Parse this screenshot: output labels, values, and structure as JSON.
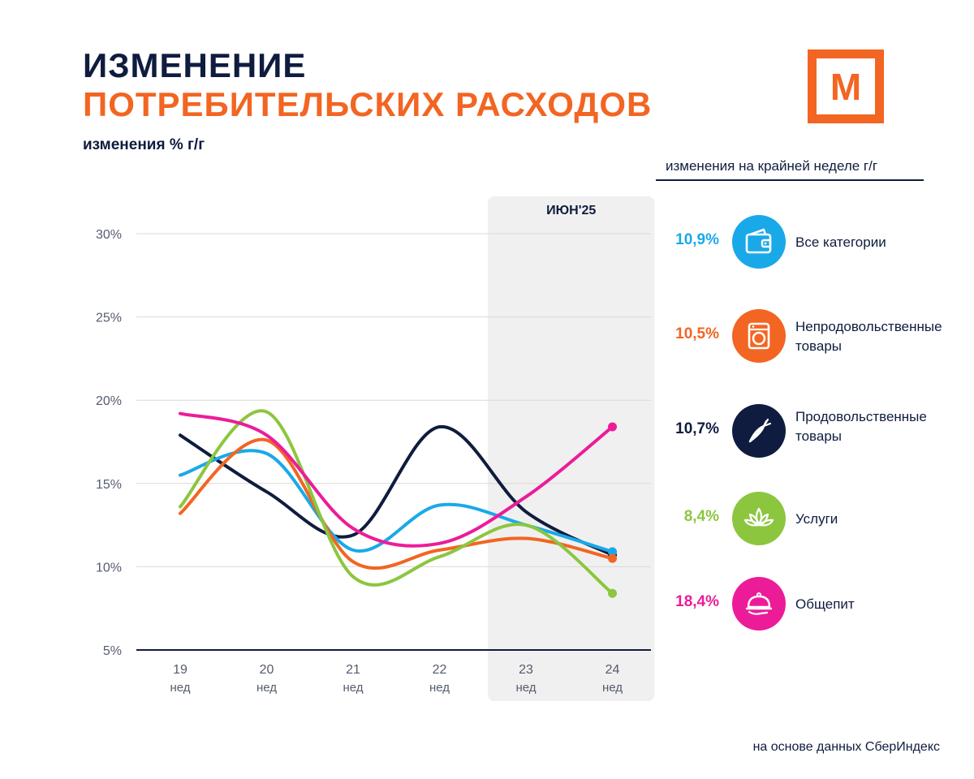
{
  "header": {
    "title_line1": "ИЗМЕНЕНИЕ",
    "title_line2": "ПОТРЕБИТЕЛЬСКИХ РАСХОДОВ",
    "subtitle": "изменения % г/г",
    "logo_letter": "М"
  },
  "legend": {
    "header": "изменения на крайней неделе г/г",
    "items": [
      {
        "value": "10,9%",
        "label_line1": "Все категории",
        "label_line2": "",
        "color": "#1aa9e8",
        "icon": "wallet-icon"
      },
      {
        "value": "10,5%",
        "label_line1": "Непродовольственные",
        "label_line2": "товары",
        "color": "#f26522",
        "icon": "washing-machine-icon"
      },
      {
        "value": "10,7%",
        "label_line1": "Продовольственные",
        "label_line2": "товары",
        "color": "#0f1c3f",
        "icon": "carrot-icon"
      },
      {
        "value": "8,4%",
        "label_line1": "Услуги",
        "label_line2": "",
        "color": "#8cc63f",
        "icon": "lotus-icon"
      },
      {
        "value": "18,4%",
        "label_line1": "Общепит",
        "label_line2": "",
        "color": "#ec1c99",
        "icon": "cloche-icon"
      }
    ]
  },
  "source": "на основе данных СберИндекс",
  "chart_data": {
    "type": "line",
    "title": "",
    "xlabel": "",
    "ylabel": "",
    "categories": [
      "19",
      "20",
      "21",
      "22",
      "23",
      "24"
    ],
    "category_sub": "нед",
    "y_ticks": [
      "5%",
      "10%",
      "15%",
      "20%",
      "25%",
      "30%"
    ],
    "ylim": [
      5,
      30
    ],
    "highlight": {
      "label": "ИЮН'25",
      "categories": [
        "23",
        "24"
      ]
    },
    "series": [
      {
        "name": "Продовольственные товары",
        "color": "#0f1c3f",
        "values": [
          17.9,
          14.5,
          11.9,
          18.4,
          13.3,
          10.7
        ]
      },
      {
        "name": "Все категории",
        "color": "#1aa9e8",
        "values": [
          15.5,
          16.8,
          11.0,
          13.7,
          12.5,
          10.9
        ]
      },
      {
        "name": "Непродовольственные товары",
        "color": "#f26522",
        "values": [
          13.2,
          17.6,
          10.3,
          11.0,
          11.7,
          10.5
        ]
      },
      {
        "name": "Услуги",
        "color": "#8cc63f",
        "values": [
          13.6,
          19.3,
          9.4,
          10.6,
          12.5,
          8.4
        ]
      },
      {
        "name": "Общепит",
        "color": "#ec1c99",
        "values": [
          19.2,
          17.9,
          12.3,
          11.4,
          14.2,
          18.4
        ]
      }
    ]
  }
}
